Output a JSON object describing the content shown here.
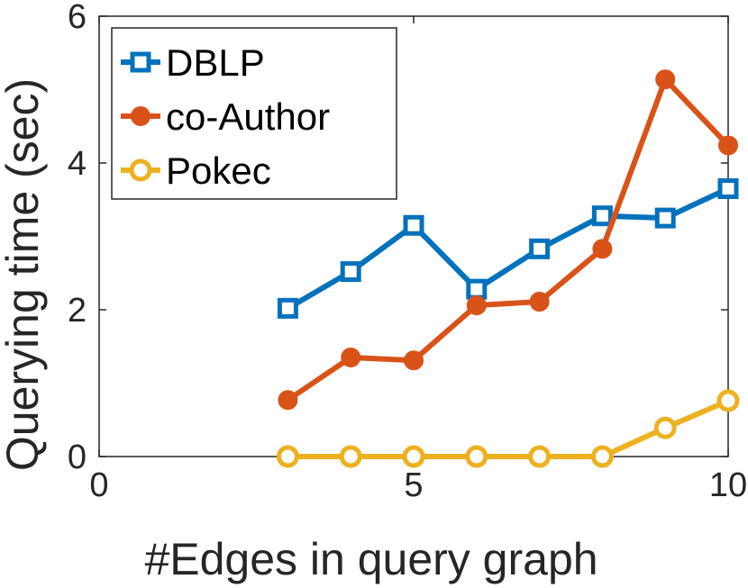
{
  "chart_data": {
    "type": "line",
    "xlabel": "#Edges in query graph",
    "ylabel": "Querying time (sec)",
    "xlim": [
      0,
      10
    ],
    "ylim": [
      0,
      6
    ],
    "xticks": [
      0,
      5,
      10
    ],
    "yticks": [
      0,
      2,
      4,
      6
    ],
    "grid": false,
    "legend": "top-left",
    "x": [
      3,
      4,
      5,
      6,
      7,
      8,
      9,
      10
    ],
    "series": [
      {
        "name": "DBLP",
        "color": "#0072BD",
        "marker": "square",
        "values": [
          2.02,
          2.52,
          3.15,
          2.28,
          2.83,
          3.28,
          3.25,
          3.65
        ]
      },
      {
        "name": "co-Author",
        "color": "#D95319",
        "marker": "filled-circle",
        "values": [
          0.77,
          1.35,
          1.31,
          2.06,
          2.11,
          2.83,
          5.14,
          4.24
        ]
      },
      {
        "name": "Pokec",
        "color": "#EDB120",
        "marker": "open-circle",
        "values": [
          0.0,
          0.0,
          0.0,
          0.0,
          0.0,
          0.0,
          0.39,
          0.76
        ]
      }
    ]
  }
}
